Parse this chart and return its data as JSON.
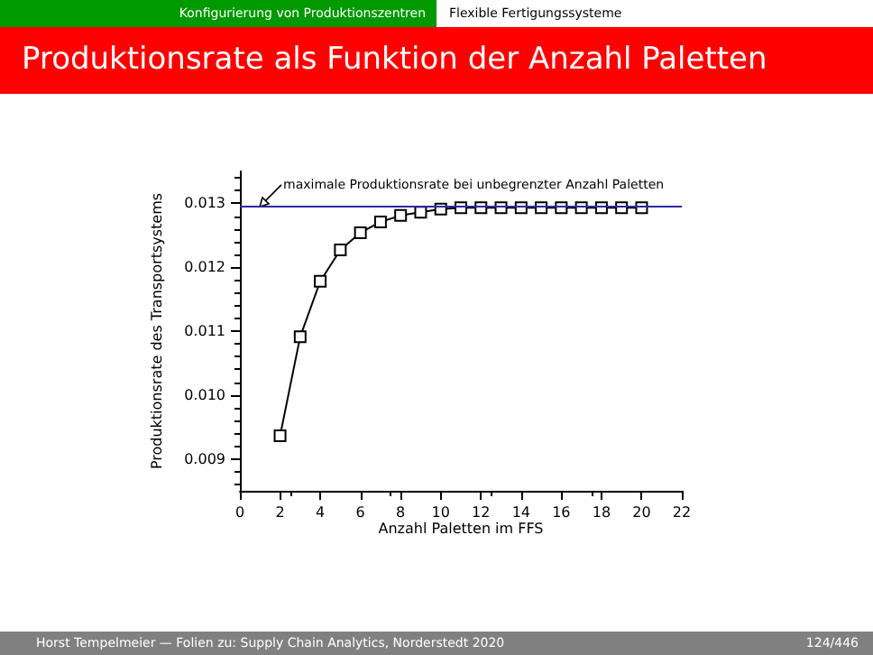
{
  "chart_data": {
    "type": "line",
    "title": "Produktionsrate als Funktion der Anzahl Paletten",
    "xlabel": "Anzahl Paletten im FFS",
    "ylabel": "Produktionsrate des Transportsystems",
    "x": [
      2,
      3,
      4,
      5,
      6,
      7,
      8,
      9,
      10,
      11,
      12,
      13,
      14,
      15,
      16,
      17,
      18,
      19,
      20
    ],
    "series": [
      {
        "color": "#000000",
        "values": [
          0.00936,
          0.01091,
          0.01178,
          0.01227,
          0.01254,
          0.01271,
          0.01281,
          0.01286,
          0.01291,
          0.01293,
          0.01293,
          0.01293,
          0.01293,
          0.01293,
          0.01293,
          0.01293,
          0.01293,
          0.01293,
          0.01293
        ]
      }
    ],
    "xlim": [
      0,
      22
    ],
    "xticks": [
      0,
      2,
      4,
      6,
      8,
      10,
      12,
      14,
      16,
      18,
      20,
      22
    ],
    "ylim": [
      0.0085,
      0.0135
    ],
    "yticks": [
      0.009,
      {
        "value": 0.01,
        "label": "0.010"
      },
      0.011,
      0.012,
      0.013
    ],
    "ref_lines": [
      {
        "axis": "y",
        "value": 0.01295,
        "color": "#2a2aa0"
      }
    ],
    "annotations": [
      "maximale Produktionsrate bei unbegrenzter Anzahl Paletten",
      "Konfigurierung von Produktionszentren",
      "Flexible Fertigungssysteme",
      "Horst Tempelmeier — Folien zu: Supply Chain Analytics, Norderstedt 2020",
      "124/446"
    ],
    "marker": "square",
    "line_style": "solid",
    "grid": false
  }
}
